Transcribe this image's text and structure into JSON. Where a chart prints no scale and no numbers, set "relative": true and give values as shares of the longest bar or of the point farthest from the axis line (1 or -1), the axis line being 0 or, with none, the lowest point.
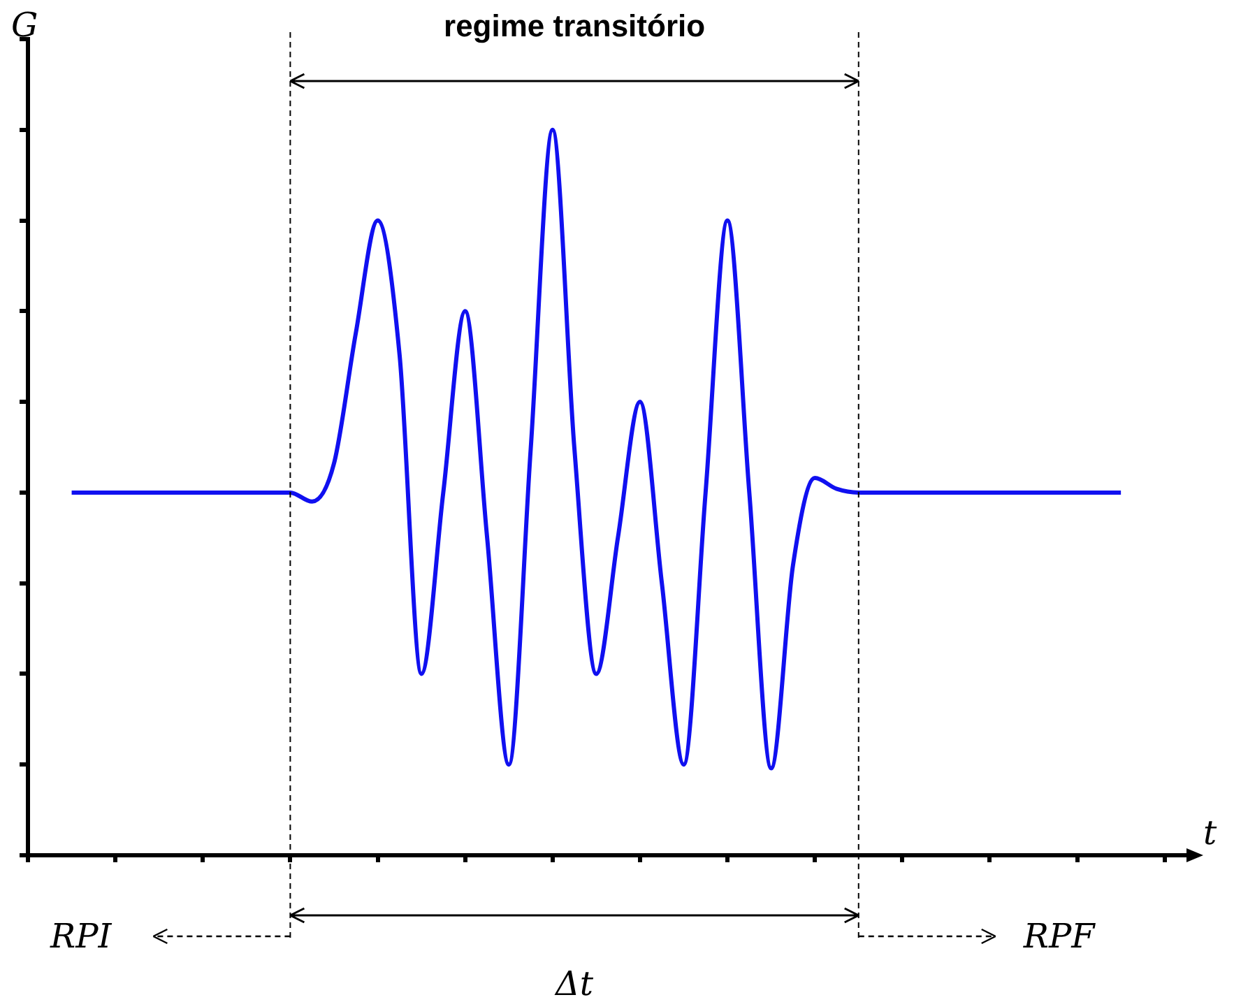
{
  "chart_data": {
    "type": "line",
    "relative": true,
    "xlabel": "t",
    "ylabel": "G",
    "categories": [
      null,
      null,
      null,
      null,
      null,
      null,
      null,
      null,
      null,
      null,
      null,
      null,
      null,
      null,
      null,
      null,
      null,
      null,
      null,
      null,
      null,
      null,
      null,
      null,
      null,
      null,
      null,
      null,
      null,
      null,
      null,
      null,
      null,
      null,
      null,
      null,
      null,
      null,
      null,
      null,
      null,
      null,
      null,
      null,
      null,
      null,
      null,
      null,
      null,
      null,
      null,
      null,
      null,
      null
    ],
    "series": [
      {
        "color": "#1010f0",
        "values": [
          null,
          null,
          0.5,
          0.5,
          0.5,
          0.5,
          0.5,
          0.5,
          0.5,
          0.5,
          0.5,
          0.5,
          0.5,
          0.4875,
          0.54,
          0.72,
          0.875,
          0.69,
          0.25,
          0.5,
          0.75,
          0.44,
          0.125,
          0.56,
          1,
          0.56,
          0.25,
          0.44,
          0.625,
          0.375,
          0.125,
          0.5,
          0.875,
          0.5,
          0.12,
          0.4,
          0.52,
          0.505,
          0.5,
          0.5,
          0.5,
          0.5,
          0.5,
          0.5,
          0.5,
          0.5,
          0.5,
          0.5,
          0.5,
          0.5,
          0.5,
          null,
          null,
          null
        ]
      }
    ],
    "annotations": [
      "regime transitório",
      "RPI",
      "RPF",
      "Δt"
    ],
    "grid": false,
    "legend": false,
    "marker": "none",
    "line_style": "solid"
  }
}
